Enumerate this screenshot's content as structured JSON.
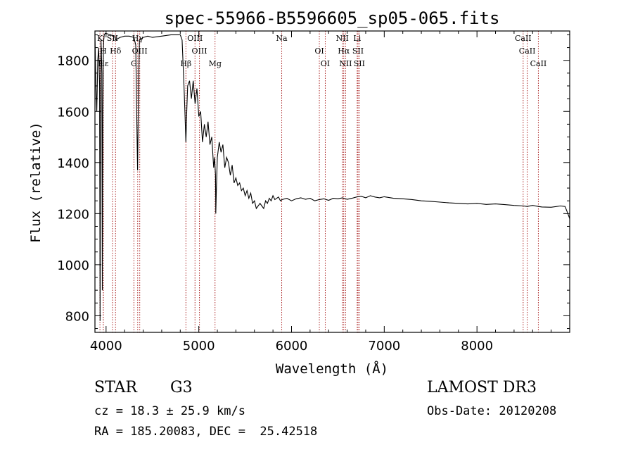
{
  "chart_data": {
    "type": "line",
    "title": "spec-55966-B5596605_sp05-065.fits",
    "xlabel": "Wavelength (Å)",
    "ylabel": "Flux (relative)",
    "xlim": [
      3880,
      9000
    ],
    "ylim": [
      735,
      1915
    ],
    "xticks": [
      4000,
      5000,
      6000,
      7000,
      8000
    ],
    "xtick_labels": [
      "4000",
      "5000",
      "6000",
      "7000",
      "8000"
    ],
    "yticks": [
      800,
      1000,
      1200,
      1400,
      1600,
      1800
    ],
    "ytick_labels": [
      "800",
      "1000",
      "1200",
      "1400",
      "1600",
      "1800"
    ],
    "grid": false,
    "series": [
      {
        "name": "spectrum",
        "x": [
          3880,
          3890,
          3900,
          3910,
          3920,
          3930,
          3935,
          3940,
          3945,
          3950,
          3955,
          3960,
          3965,
          3970,
          3975,
          3980,
          3990,
          4000,
          4050,
          4100,
          4102,
          4150,
          4200,
          4250,
          4300,
          4320,
          4330,
          4340,
          4350,
          4360,
          4400,
          4450,
          4500,
          4600,
          4700,
          4800,
          4820,
          4840,
          4850,
          4861,
          4870,
          4880,
          4900,
          4920,
          4940,
          4960,
          4980,
          5000,
          5020,
          5040,
          5060,
          5080,
          5100,
          5120,
          5140,
          5160,
          5170,
          5180,
          5183,
          5190,
          5200,
          5220,
          5240,
          5260,
          5280,
          5300,
          5320,
          5340,
          5360,
          5380,
          5400,
          5420,
          5440,
          5460,
          5480,
          5500,
          5520,
          5540,
          5560,
          5580,
          5600,
          5620,
          5640,
          5660,
          5680,
          5700,
          5720,
          5740,
          5760,
          5780,
          5800,
          5820,
          5840,
          5860,
          5880,
          5900,
          5950,
          6000,
          6050,
          6100,
          6150,
          6200,
          6250,
          6300,
          6350,
          6400,
          6450,
          6500,
          6550,
          6600,
          6650,
          6700,
          6750,
          6800,
          6850,
          6900,
          6950,
          7000,
          7100,
          7200,
          7300,
          7400,
          7500,
          7600,
          7700,
          7800,
          7900,
          8000,
          8100,
          8200,
          8300,
          8400,
          8500,
          8542,
          8600,
          8662,
          8700,
          8800,
          8900,
          8950,
          8980,
          9000
        ],
        "y": [
          1900,
          1700,
          1600,
          1800,
          1850,
          1700,
          780,
          1500,
          1880,
          1820,
          1750,
          900,
          1600,
          1820,
          1880,
          1900,
          1905,
          1905,
          1900,
          1890,
          1880,
          1890,
          1895,
          1895,
          1890,
          1860,
          1600,
          1370,
          1700,
          1880,
          1890,
          1895,
          1890,
          1895,
          1900,
          1900,
          1880,
          1700,
          1600,
          1480,
          1600,
          1700,
          1720,
          1650,
          1720,
          1630,
          1690,
          1580,
          1600,
          1480,
          1550,
          1500,
          1560,
          1470,
          1500,
          1380,
          1420,
          1350,
          1200,
          1300,
          1420,
          1480,
          1440,
          1470,
          1380,
          1420,
          1400,
          1350,
          1390,
          1320,
          1340,
          1310,
          1320,
          1290,
          1300,
          1270,
          1290,
          1260,
          1280,
          1240,
          1250,
          1220,
          1230,
          1240,
          1230,
          1220,
          1250,
          1240,
          1260,
          1250,
          1270,
          1255,
          1260,
          1265,
          1250,
          1255,
          1260,
          1250,
          1258,
          1262,
          1256,
          1260,
          1250,
          1255,
          1258,
          1252,
          1260,
          1258,
          1262,
          1256,
          1260,
          1265,
          1268,
          1262,
          1270,
          1265,
          1262,
          1266,
          1260,
          1258,
          1255,
          1250,
          1248,
          1245,
          1242,
          1240,
          1238,
          1240,
          1236,
          1238,
          1235,
          1232,
          1230,
          1228,
          1232,
          1228,
          1226,
          1225,
          1230,
          1228,
          1200,
          1180
        ]
      }
    ],
    "lines": [
      {
        "label": "K",
        "wavelength": 3934
      },
      {
        "label": "H",
        "wavelength": 3970
      },
      {
        "label": "Hε",
        "wavelength": 3970
      },
      {
        "label": "SII",
        "wavelength": 4069
      },
      {
        "label": "Hδ",
        "wavelength": 4102
      },
      {
        "label": "G",
        "wavelength": 4300
      },
      {
        "label": "Hγ",
        "wavelength": 4341
      },
      {
        "label": "OIII",
        "wavelength": 4363
      },
      {
        "label": "Hβ",
        "wavelength": 4861
      },
      {
        "label": "OIII",
        "wavelength": 4959
      },
      {
        "label": "OIII",
        "wavelength": 5007
      },
      {
        "label": "Mg",
        "wavelength": 5175
      },
      {
        "label": "Na",
        "wavelength": 5894
      },
      {
        "label": "OI",
        "wavelength": 6300
      },
      {
        "label": "OI",
        "wavelength": 6364
      },
      {
        "label": "NII",
        "wavelength": 6548
      },
      {
        "label": "Hα",
        "wavelength": 6563
      },
      {
        "label": "NII",
        "wavelength": 6583
      },
      {
        "label": "Li",
        "wavelength": 6708
      },
      {
        "label": "SII",
        "wavelength": 6717
      },
      {
        "label": "SII",
        "wavelength": 6731
      },
      {
        "label": "CaII",
        "wavelength": 8498
      },
      {
        "label": "CaII",
        "wavelength": 8542
      },
      {
        "label": "CaII",
        "wavelength": 8662
      }
    ],
    "colors": {
      "line": "#000000",
      "marker": "#aa2222",
      "axes": "#000000"
    }
  },
  "info": {
    "object_class": "STAR",
    "subclass": "G3",
    "survey": "LAMOST DR3",
    "cz": "cz = 18.3 ± 25.9 km/s",
    "obs_date": "Obs-Date: 20120208",
    "coords": "RA = 185.20083, DEC =  25.42518"
  }
}
